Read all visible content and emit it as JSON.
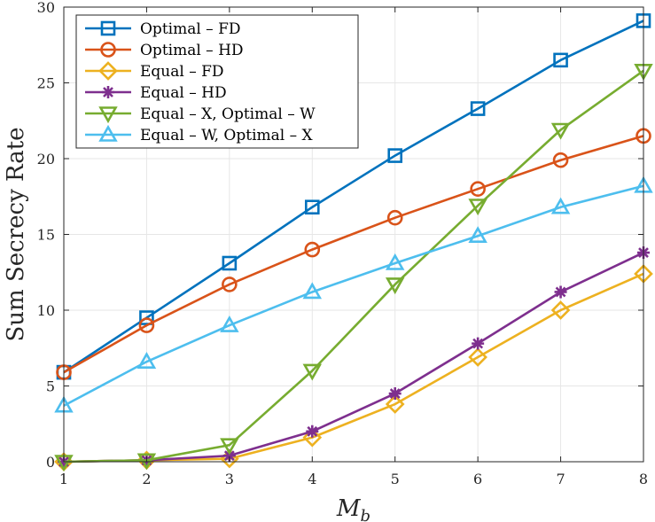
{
  "chart_data": {
    "type": "line",
    "title": "",
    "xlabel": "M",
    "xlabel_sub": "b",
    "ylabel": "Sum Secrecy Rate",
    "x": [
      1,
      2,
      3,
      4,
      5,
      6,
      7,
      8
    ],
    "xlim": [
      1,
      8
    ],
    "ylim": [
      0,
      30
    ],
    "xticks": [
      1,
      2,
      3,
      4,
      5,
      6,
      7,
      8
    ],
    "yticks": [
      0,
      5,
      10,
      15,
      20,
      25,
      30
    ],
    "grid": true,
    "legend_position": "top-left",
    "series": [
      {
        "name": "Optimal – FD",
        "color": "#0072BD",
        "marker": "square",
        "values": [
          5.9,
          9.5,
          13.1,
          16.8,
          20.2,
          23.3,
          26.5,
          29.1
        ]
      },
      {
        "name": "Optimal – HD",
        "color": "#D95319",
        "marker": "circle",
        "values": [
          5.9,
          9.0,
          11.7,
          14.0,
          16.1,
          18.0,
          19.9,
          21.5
        ]
      },
      {
        "name": "Equal – FD",
        "color": "#EDB120",
        "marker": "diamond",
        "values": [
          0.0,
          0.1,
          0.2,
          1.6,
          3.8,
          6.9,
          10.0,
          12.4
        ]
      },
      {
        "name": "Equal – HD",
        "color": "#7E2F8E",
        "marker": "asterisk",
        "values": [
          0.0,
          0.1,
          0.4,
          2.0,
          4.5,
          7.8,
          11.2,
          13.8
        ]
      },
      {
        "name": "Equal – X, Optimal – W",
        "color": "#77AC30",
        "marker": "triangle-down",
        "values": [
          0.0,
          0.1,
          1.1,
          6.0,
          11.7,
          16.9,
          21.9,
          25.8
        ]
      },
      {
        "name": "Equal – W, Optimal – X",
        "color": "#4DBEEE",
        "marker": "triangle-up",
        "values": [
          3.7,
          6.6,
          9.0,
          11.2,
          13.1,
          14.9,
          16.8,
          18.2
        ]
      }
    ]
  }
}
